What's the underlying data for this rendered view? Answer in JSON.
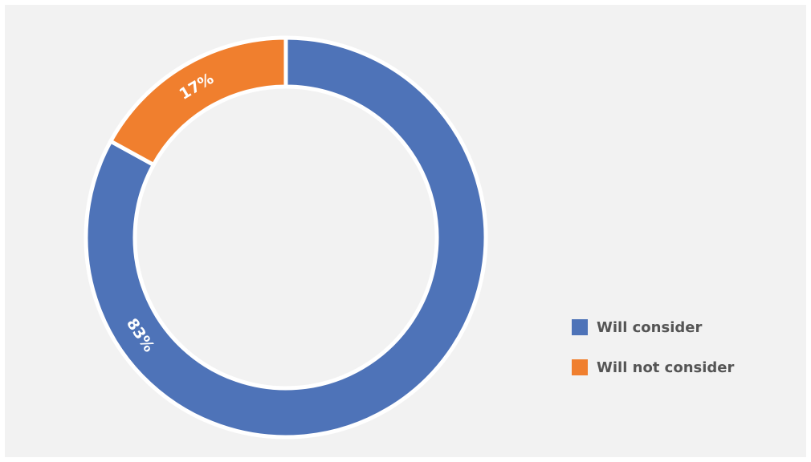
{
  "chart_data": {
    "type": "pie",
    "donut": true,
    "legend_position": "right",
    "slices": [
      {
        "name": "Will consider",
        "value": 83,
        "label": "83%",
        "color": "#4e73b8"
      },
      {
        "name": "Will not consider",
        "value": 17,
        "label": "17%",
        "color": "#f07f2e"
      }
    ]
  }
}
